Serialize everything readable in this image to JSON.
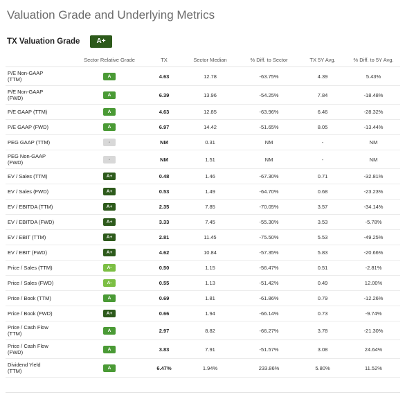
{
  "title": "Valuation Grade and Underlying Metrics",
  "grade": {
    "label": "TX Valuation Grade",
    "value": "A+"
  },
  "colors": {
    "a_plus": "#2d5a1b",
    "a": "#4a9a35",
    "a_minus": "#7cbf44",
    "na": "#d8d8d8"
  },
  "table": {
    "headers": [
      "",
      "Sector Relative Grade",
      "TX",
      "Sector Median",
      "% Diff. to Sector",
      "TX 5Y Avg.",
      "% Diff. to 5Y Avg."
    ],
    "rows": [
      {
        "metric": "P/E Non-GAAP\n(TTM)",
        "grade": "A",
        "tx": "4.63",
        "median": "12.78",
        "diff_sector": "-63.75%",
        "avg5y": "4.39",
        "diff_5y": "5.43%"
      },
      {
        "metric": "P/E Non-GAAP\n(FWD)",
        "grade": "A",
        "tx": "6.39",
        "median": "13.96",
        "diff_sector": "-54.25%",
        "avg5y": "7.84",
        "diff_5y": "-18.48%"
      },
      {
        "metric": "P/E GAAP (TTM)",
        "grade": "A",
        "tx": "4.63",
        "median": "12.85",
        "diff_sector": "-63.96%",
        "avg5y": "6.46",
        "diff_5y": "-28.32%"
      },
      {
        "metric": "P/E GAAP (FWD)",
        "grade": "A",
        "tx": "6.97",
        "median": "14.42",
        "diff_sector": "-51.65%",
        "avg5y": "8.05",
        "diff_5y": "-13.44%"
      },
      {
        "metric": "PEG GAAP (TTM)",
        "grade": "-",
        "tx": "NM",
        "median": "0.31",
        "diff_sector": "NM",
        "avg5y": "-",
        "diff_5y": "NM"
      },
      {
        "metric": "PEG Non-GAAP\n(FWD)",
        "grade": "-",
        "tx": "NM",
        "median": "1.51",
        "diff_sector": "NM",
        "avg5y": "-",
        "diff_5y": "NM"
      },
      {
        "metric": "EV / Sales (TTM)",
        "grade": "A+",
        "tx": "0.48",
        "median": "1.46",
        "diff_sector": "-67.30%",
        "avg5y": "0.71",
        "diff_5y": "-32.81%"
      },
      {
        "metric": "EV / Sales (FWD)",
        "grade": "A+",
        "tx": "0.53",
        "median": "1.49",
        "diff_sector": "-64.70%",
        "avg5y": "0.68",
        "diff_5y": "-23.23%"
      },
      {
        "metric": "EV / EBITDA (TTM)",
        "grade": "A+",
        "tx": "2.35",
        "median": "7.85",
        "diff_sector": "-70.05%",
        "avg5y": "3.57",
        "diff_5y": "-34.14%"
      },
      {
        "metric": "EV / EBITDA (FWD)",
        "grade": "A+",
        "tx": "3.33",
        "median": "7.45",
        "diff_sector": "-55.30%",
        "avg5y": "3.53",
        "diff_5y": "-5.78%"
      },
      {
        "metric": "EV / EBIT (TTM)",
        "grade": "A+",
        "tx": "2.81",
        "median": "11.45",
        "diff_sector": "-75.50%",
        "avg5y": "5.53",
        "diff_5y": "-49.25%"
      },
      {
        "metric": "EV / EBIT (FWD)",
        "grade": "A+",
        "tx": "4.62",
        "median": "10.84",
        "diff_sector": "-57.35%",
        "avg5y": "5.83",
        "diff_5y": "-20.66%"
      },
      {
        "metric": "Price / Sales (TTM)",
        "grade": "A-",
        "tx": "0.50",
        "median": "1.15",
        "diff_sector": "-56.47%",
        "avg5y": "0.51",
        "diff_5y": "-2.81%"
      },
      {
        "metric": "Price / Sales (FWD)",
        "grade": "A-",
        "tx": "0.55",
        "median": "1.13",
        "diff_sector": "-51.42%",
        "avg5y": "0.49",
        "diff_5y": "12.00%"
      },
      {
        "metric": "Price / Book (TTM)",
        "grade": "A",
        "tx": "0.69",
        "median": "1.81",
        "diff_sector": "-61.86%",
        "avg5y": "0.79",
        "diff_5y": "-12.26%"
      },
      {
        "metric": "Price / Book (FWD)",
        "grade": "A+",
        "tx": "0.66",
        "median": "1.94",
        "diff_sector": "-66.14%",
        "avg5y": "0.73",
        "diff_5y": "-9.74%"
      },
      {
        "metric": "Price / Cash Flow\n(TTM)",
        "grade": "A",
        "tx": "2.97",
        "median": "8.82",
        "diff_sector": "-66.27%",
        "avg5y": "3.78",
        "diff_5y": "-21.30%"
      },
      {
        "metric": "Price / Cash Flow\n(FWD)",
        "grade": "A",
        "tx": "3.83",
        "median": "7.91",
        "diff_sector": "-51.57%",
        "avg5y": "3.08",
        "diff_5y": "24.64%"
      },
      {
        "metric": "Dividend Yield\n(TTM)",
        "grade": "A",
        "tx": "6.47%",
        "median": "1.94%",
        "diff_sector": "233.86%",
        "avg5y": "5.80%",
        "diff_5y": "11.52%"
      }
    ]
  }
}
